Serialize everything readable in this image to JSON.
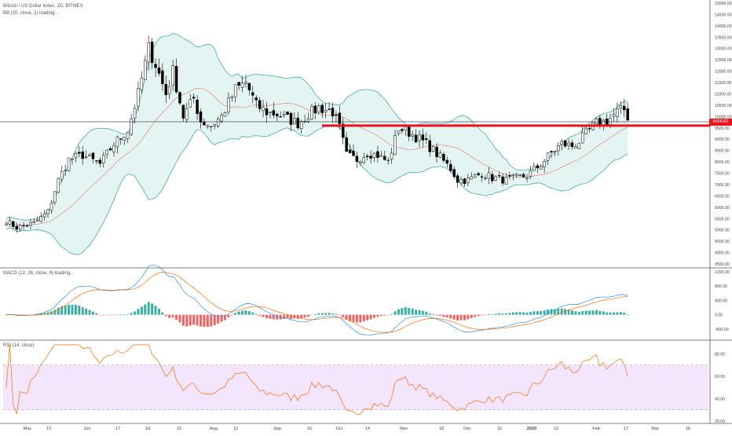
{
  "header": {
    "symbol_line": "Bitcoin / US Dollar Index, 1D, BITMEX",
    "bb_line": "BB (20, close, 2) loading...",
    "macd_line": "MACD (12, 26, close, 9) loading...",
    "rsi_line": "RSI (14, close)"
  },
  "price_tag": {
    "value": "9568.82",
    "color": "#e8141d"
  },
  "colors": {
    "bull": "#26a69a",
    "bear": "#ef5350",
    "bb_band": "#26a69a",
    "bb_fill": "#e0f3f1",
    "macd": "#2196f3",
    "signal": "#ff6d00",
    "rsi": "#ff6d00",
    "rsi_band": "#f3e5fc",
    "hline": "#e8141d"
  },
  "chart_data": [
    {
      "type": "candlestick",
      "name": "price",
      "ylim": [
        3500,
        15000
      ],
      "y_ticks": [
        "15000.00",
        "14500.00",
        "14000.00",
        "13500.00",
        "13000.00",
        "12500.00",
        "12000.00",
        "11500.00",
        "11000.00",
        "10500.00",
        "10000.00",
        "9500.00",
        "9000.00",
        "8500.00",
        "8000.00",
        "7500.00",
        "7000.00",
        "6500.00",
        "6000.00",
        "5500.00",
        "5000.00",
        "4500.00",
        "4000.00",
        "3500.00"
      ],
      "x_ticks": [
        "May",
        "13",
        "Jun",
        "17",
        "Jul",
        "15",
        "Aug",
        "12",
        "Sep",
        "16",
        "Oct",
        "14",
        "Nov",
        "18",
        "Dec",
        "16",
        "2020",
        "13",
        "Feb",
        "17",
        "Mar",
        "16"
      ],
      "horizontal_line": 9600,
      "anchors": [
        [
          0,
          5400
        ],
        [
          3,
          5100
        ],
        [
          8,
          5300
        ],
        [
          12,
          5800
        ],
        [
          15,
          7200
        ],
        [
          18,
          8100
        ],
        [
          22,
          8300
        ],
        [
          27,
          7900
        ],
        [
          31,
          8800
        ],
        [
          35,
          9400
        ],
        [
          38,
          11000
        ],
        [
          41,
          13000
        ],
        [
          43,
          12300
        ],
        [
          46,
          11000
        ],
        [
          48,
          12000
        ],
        [
          51,
          10000
        ],
        [
          54,
          10800
        ],
        [
          56,
          9800
        ],
        [
          59,
          9600
        ],
        [
          62,
          10000
        ],
        [
          66,
          11200
        ],
        [
          69,
          11500
        ],
        [
          72,
          10500
        ],
        [
          75,
          10200
        ],
        [
          78,
          10100
        ],
        [
          81,
          9900
        ],
        [
          84,
          9700
        ],
        [
          87,
          10100
        ],
        [
          90,
          10400
        ],
        [
          94,
          10200
        ],
        [
          96,
          9500
        ],
        [
          98,
          8300
        ],
        [
          101,
          8100
        ],
        [
          104,
          8400
        ],
        [
          107,
          8300
        ],
        [
          110,
          8000
        ],
        [
          113,
          9500
        ],
        [
          116,
          9300
        ],
        [
          118,
          9100
        ],
        [
          121,
          8800
        ],
        [
          125,
          8200
        ],
        [
          128,
          7700
        ],
        [
          130,
          7200
        ],
        [
          133,
          7200
        ],
        [
          137,
          7500
        ],
        [
          140,
          7300
        ],
        [
          144,
          7200
        ],
        [
          147,
          7300
        ],
        [
          150,
          7400
        ],
        [
          154,
          7900
        ],
        [
          157,
          8400
        ],
        [
          160,
          8800
        ],
        [
          163,
          8700
        ],
        [
          165,
          8900
        ],
        [
          168,
          9400
        ],
        [
          170,
          9700
        ],
        [
          173,
          9800
        ],
        [
          176,
          10200
        ],
        [
          178,
          10300
        ],
        [
          180,
          9700
        ]
      ]
    },
    {
      "type": "macd",
      "name": "MACD",
      "ylim": [
        -600,
        1200
      ],
      "y_ticks": [
        "1200.00",
        "800.00",
        "400.00",
        "0.00",
        "-400.00"
      ]
    },
    {
      "type": "rsi",
      "name": "RSI",
      "ylim": [
        20,
        90
      ],
      "y_ticks": [
        "80.00",
        "60.00",
        "40.00",
        "20.00"
      ],
      "band": [
        30,
        70
      ]
    }
  ]
}
